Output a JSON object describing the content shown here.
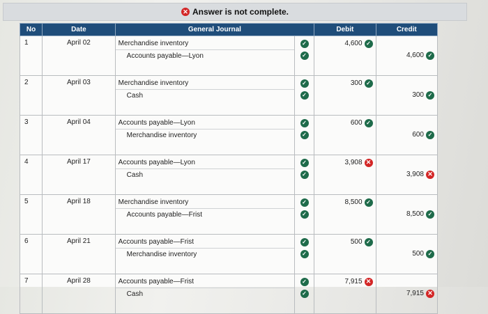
{
  "banner": {
    "text": "Answer is not complete."
  },
  "headers": {
    "no": "No",
    "date": "Date",
    "journal": "General Journal",
    "debit": "Debit",
    "credit": "Credit"
  },
  "entries": [
    {
      "no": "1",
      "date": "April 02",
      "debit_account": "Merchandise inventory",
      "credit_account": "Accounts payable—Lyon",
      "debit": "4,600",
      "debit_status": "correct",
      "credit": "4,600",
      "credit_status": "correct"
    },
    {
      "no": "2",
      "date": "April 03",
      "debit_account": "Merchandise inventory",
      "credit_account": "Cash",
      "debit": "300",
      "debit_status": "correct",
      "credit": "300",
      "credit_status": "correct"
    },
    {
      "no": "3",
      "date": "April 04",
      "debit_account": "Accounts payable—Lyon",
      "credit_account": "Merchandise inventory",
      "debit": "600",
      "debit_status": "correct",
      "credit": "600",
      "credit_status": "correct"
    },
    {
      "no": "4",
      "date": "April 17",
      "debit_account": "Accounts payable—Lyon",
      "credit_account": "Cash",
      "debit": "3,908",
      "debit_status": "incorrect",
      "credit": "3,908",
      "credit_status": "incorrect"
    },
    {
      "no": "5",
      "date": "April 18",
      "debit_account": "Merchandise inventory",
      "credit_account": "Accounts payable—Frist",
      "debit": "8,500",
      "debit_status": "correct",
      "credit": "8,500",
      "credit_status": "correct"
    },
    {
      "no": "6",
      "date": "April 21",
      "debit_account": "Accounts payable—Frist",
      "credit_account": "Merchandise inventory",
      "debit": "500",
      "debit_status": "correct",
      "credit": "500",
      "credit_status": "correct"
    },
    {
      "no": "7",
      "date": "April 28",
      "debit_account": "Accounts payable—Frist",
      "credit_account": "Cash",
      "debit": "7,915",
      "debit_status": "incorrect",
      "credit": "7,915",
      "credit_status": "incorrect"
    }
  ],
  "icons": {
    "correct": "check-circle-icon",
    "incorrect": "x-circle-icon"
  },
  "colors": {
    "header_bg": "#1f4d7a",
    "correct": "#1e6b4a",
    "incorrect": "#d32626"
  }
}
